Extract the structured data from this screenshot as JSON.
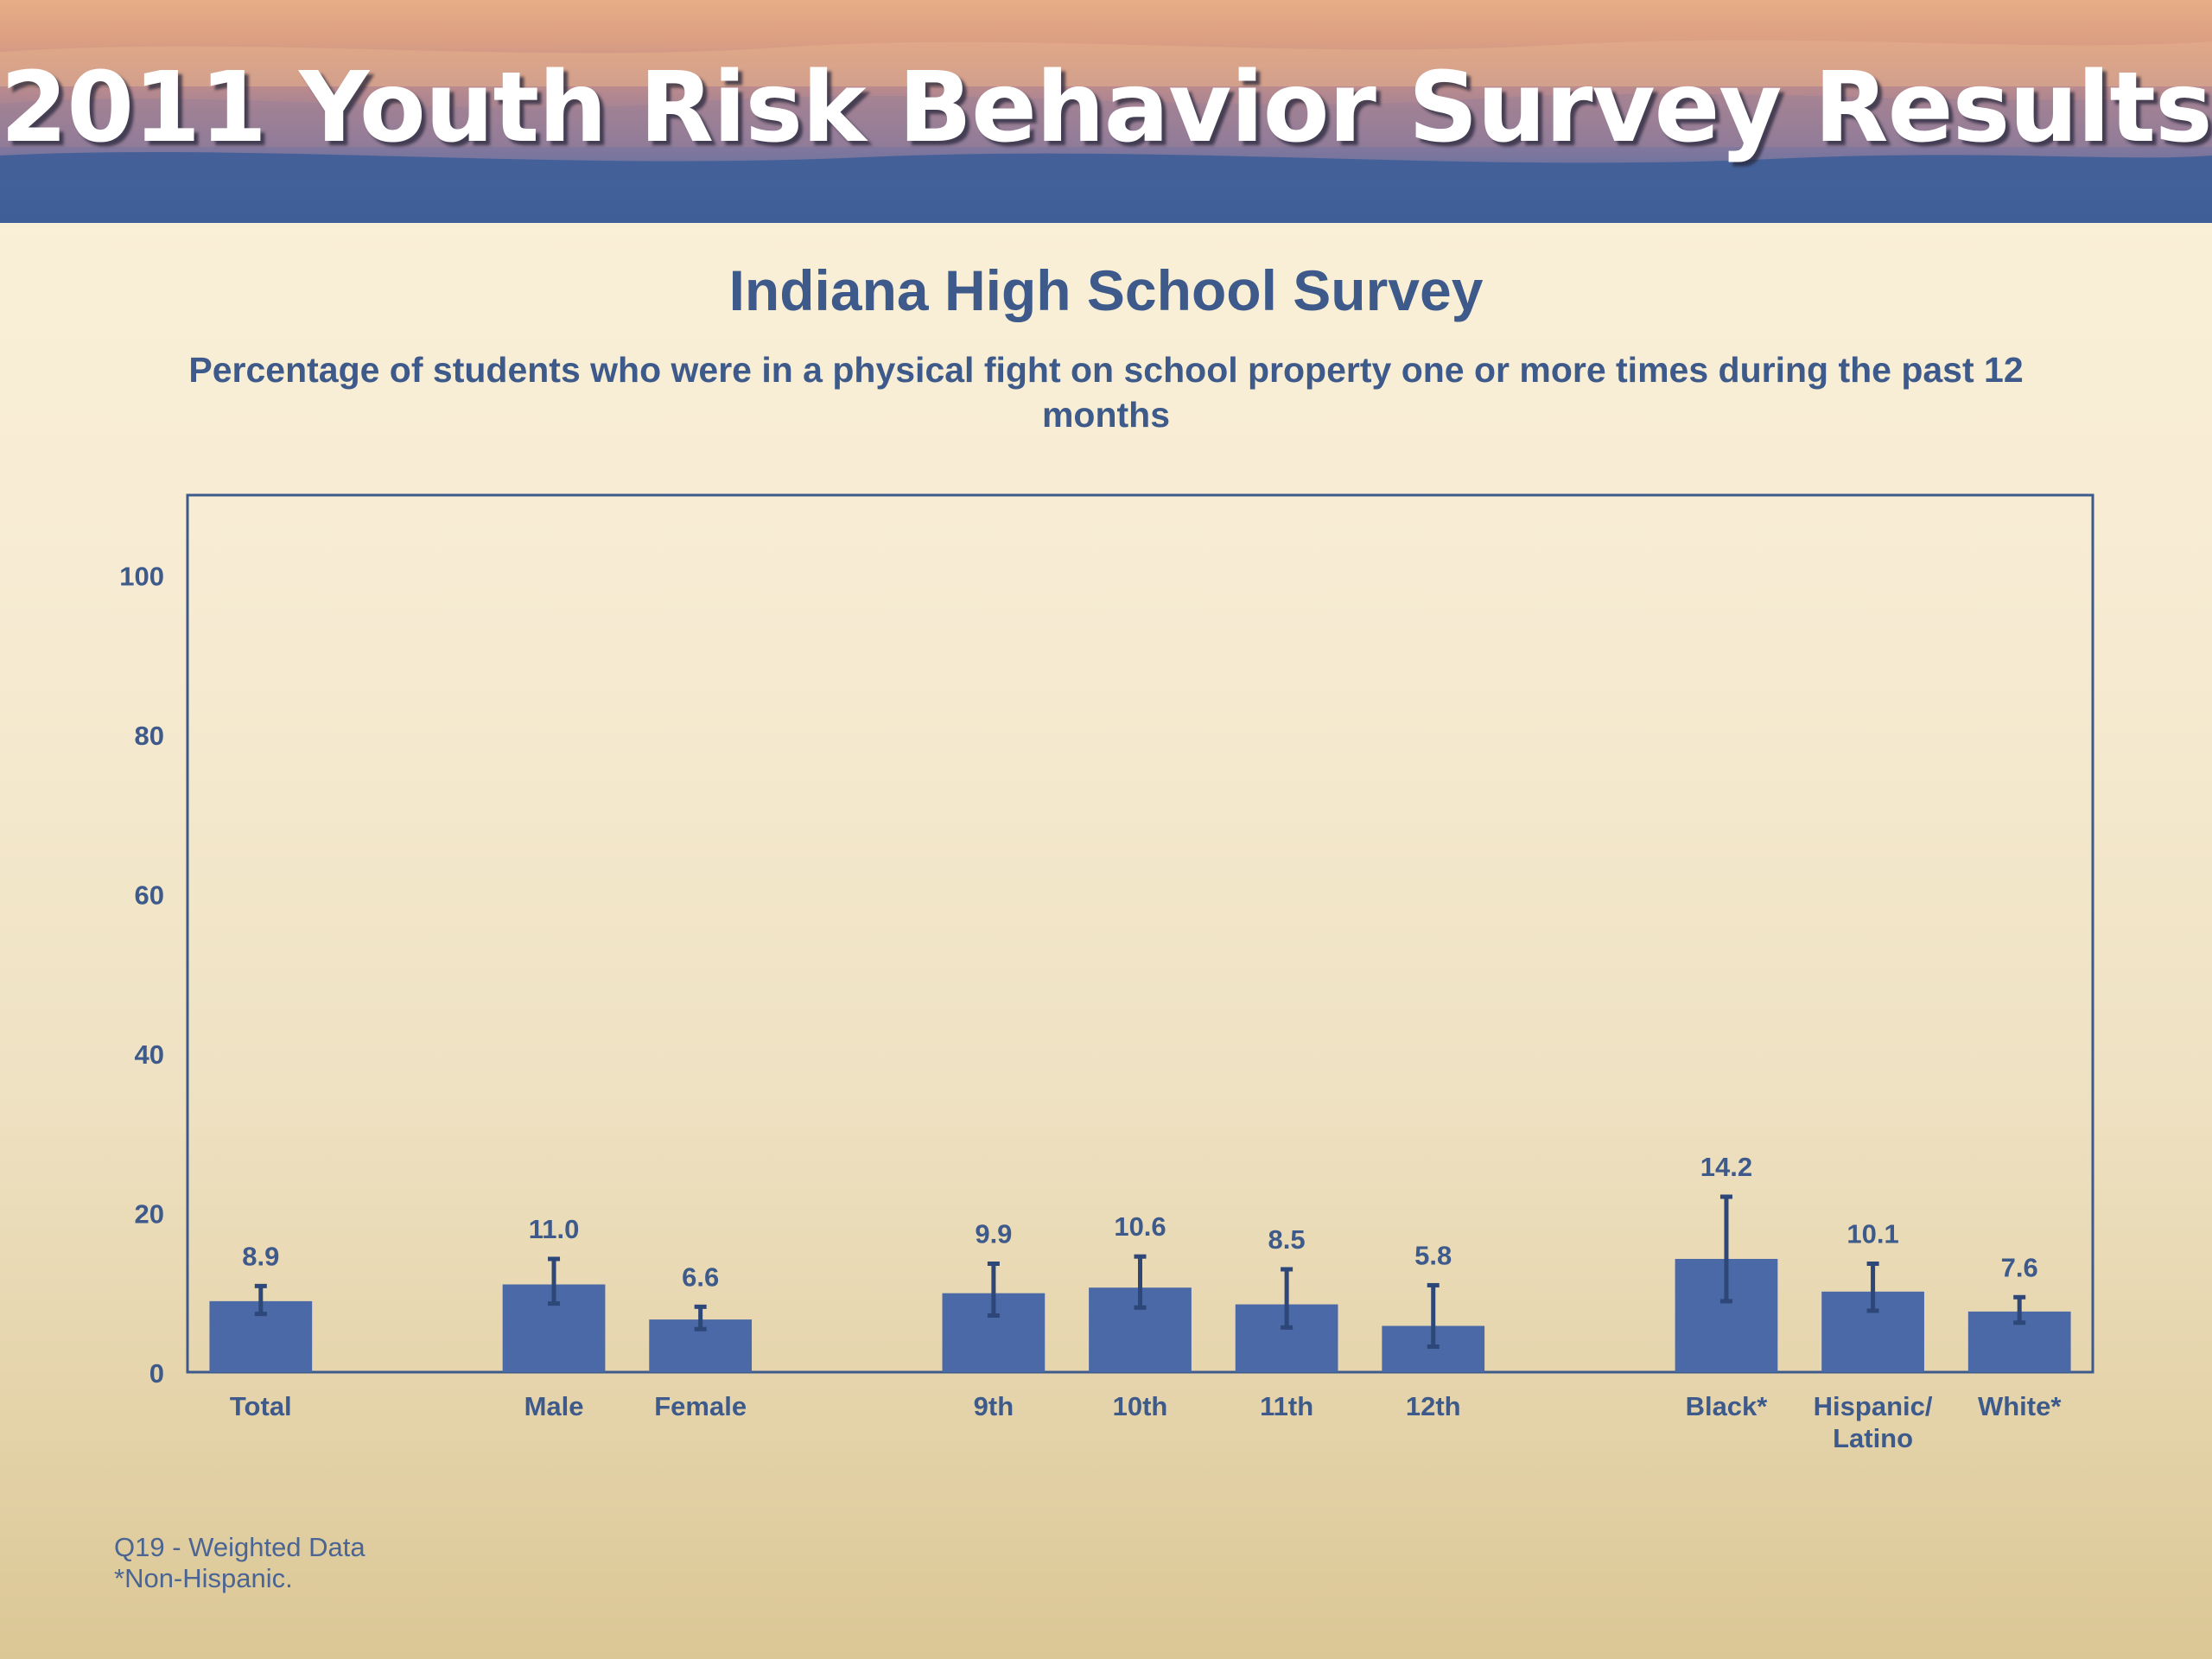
{
  "banner": {
    "title": "2011 Youth Risk Behavior Survey Results"
  },
  "colors": {
    "bar": "#4a69a6",
    "error": "#2d4778",
    "text": "#3d5a8a",
    "frame": "#3d5a8a"
  },
  "chart_data": {
    "type": "bar",
    "title": "Indiana High School Survey",
    "subtitle": "Percentage of students who were in a physical fight on school property one or more times during the past 12 months",
    "xlabel": "",
    "ylabel": "",
    "ylim": [
      0,
      110
    ],
    "yticks": [
      0,
      20,
      40,
      60,
      80,
      100
    ],
    "grid": false,
    "legend": "none",
    "categories": [
      "Total",
      "Male",
      "Female",
      "9th",
      "10th",
      "11th",
      "12th",
      "Black*",
      "Hispanic/\nLatino",
      "White*"
    ],
    "groups": [
      [
        "Total"
      ],
      [
        "Male",
        "Female"
      ],
      [
        "9th",
        "10th",
        "11th",
        "12th"
      ],
      [
        "Black*",
        "Hispanic/\nLatino",
        "White*"
      ]
    ],
    "values": [
      8.9,
      11.0,
      6.6,
      9.9,
      10.6,
      8.5,
      5.8,
      14.2,
      10.1,
      7.6
    ],
    "value_labels": [
      "8.9",
      "11.0",
      "6.6",
      "9.9",
      "10.6",
      "8.5",
      "5.8",
      "14.2",
      "10.1",
      "7.6"
    ],
    "error_low": [
      7.3,
      8.6,
      5.4,
      7.1,
      8.1,
      5.6,
      3.2,
      8.9,
      7.7,
      6.2
    ],
    "error_high": [
      10.8,
      14.2,
      8.2,
      13.6,
      14.5,
      12.9,
      10.9,
      22.0,
      13.6,
      9.4
    ]
  },
  "footnotes": {
    "line1": "Q19 - Weighted Data",
    "line2": "*Non-Hispanic."
  }
}
